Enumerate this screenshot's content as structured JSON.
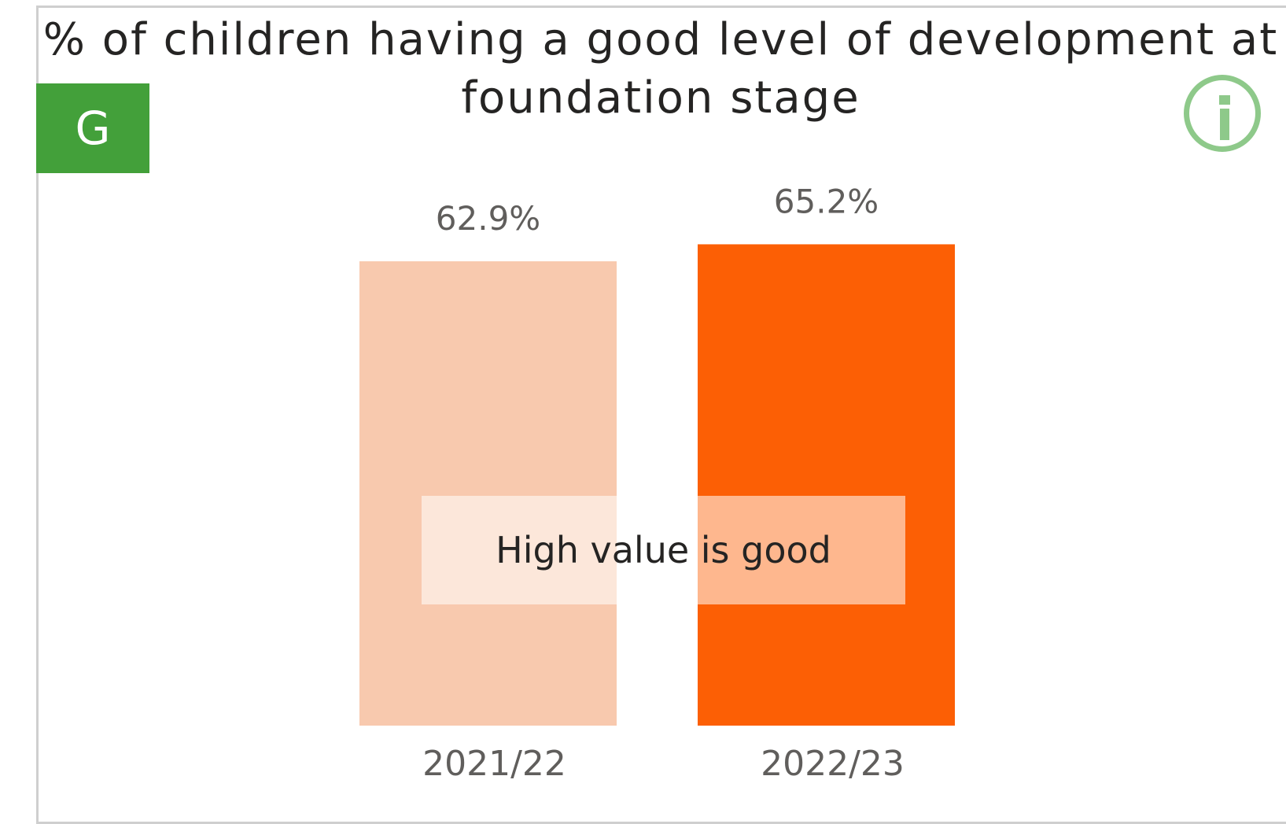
{
  "header": {
    "title": "% of children having a good level of development at foundation stage",
    "rag_label": "G",
    "rag_color": "#43a03a",
    "info_icon": "info-icon",
    "info_color": "#8ec98a"
  },
  "note": "High value is good",
  "chart_data": {
    "type": "bar",
    "categories": [
      "2021/22",
      "2022/23"
    ],
    "values": [
      62.9,
      65.2
    ],
    "data_labels": [
      "62.9%",
      "65.2%"
    ],
    "colors": [
      "#f8c9ae",
      "#fc5f05"
    ],
    "ylim": [
      0,
      72
    ],
    "grid": false,
    "legend": "none"
  }
}
